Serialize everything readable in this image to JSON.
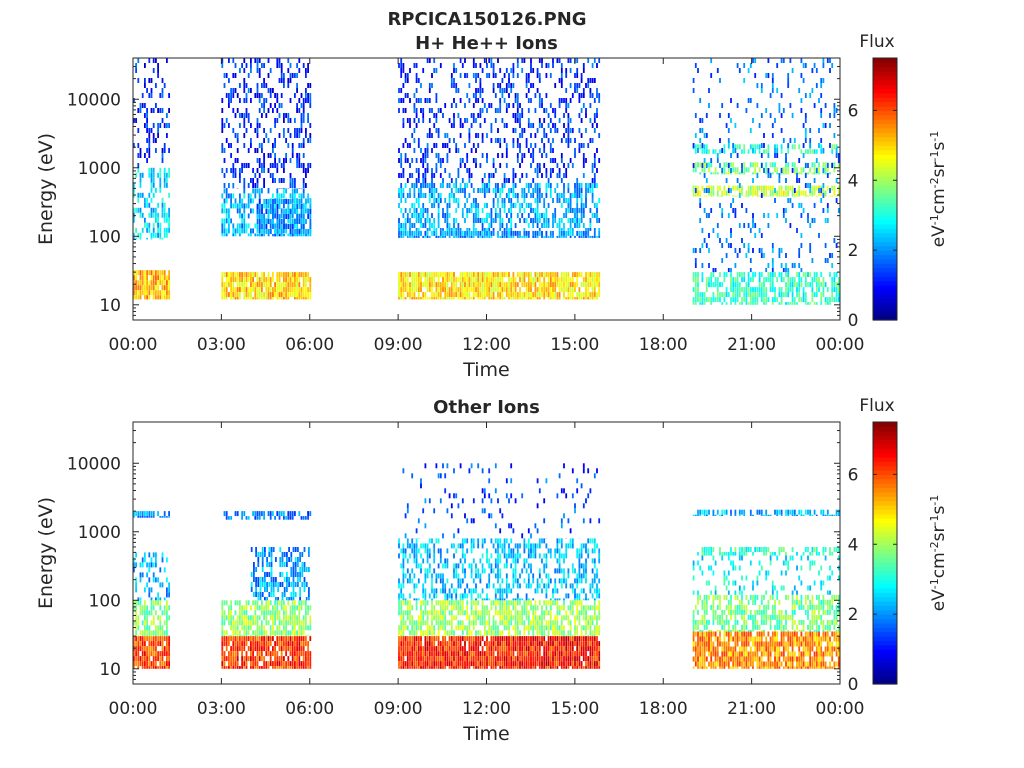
{
  "figure": {
    "title": "RPCICA150126.PNG"
  },
  "chart_data": [
    {
      "type": "heatmap",
      "title": "H+ He++ Ions",
      "xlabel": "Time",
      "ylabel": "Energy (eV)",
      "x_ticks": [
        "00:00",
        "03:00",
        "06:00",
        "09:00",
        "12:00",
        "15:00",
        "18:00",
        "21:00",
        "00:00"
      ],
      "x_range_hours": [
        0,
        24
      ],
      "y_scale": "log",
      "y_ticks": [
        {
          "value": 10,
          "label": "10"
        },
        {
          "value": 100,
          "label": "100"
        },
        {
          "value": 1000,
          "label": "1000"
        },
        {
          "value": 10000,
          "label": "10000"
        }
      ],
      "y_range": [
        6,
        40000
      ],
      "colorbar": {
        "title": "Flux",
        "label": "eV-1cm-2sr-1s-1",
        "range": [
          0,
          7.5
        ],
        "ticks": [
          "0",
          "2",
          "4",
          "6"
        ],
        "colormap": "jet"
      },
      "coverage_hours": [
        [
          0.0,
          1.2
        ],
        [
          3.0,
          6.0
        ],
        [
          9.0,
          15.8
        ],
        [
          19.0,
          24.0
        ]
      ],
      "bands": [
        {
          "hours": [
            0.0,
            1.2
          ],
          "energy": [
            12,
            32
          ],
          "level": 5.2,
          "density": 0.9
        },
        {
          "hours": [
            0.0,
            1.2
          ],
          "energy": [
            90,
            1000
          ],
          "level": 2.6,
          "density": 0.45
        },
        {
          "hours": [
            0.0,
            1.2
          ],
          "energy": [
            1000,
            40000
          ],
          "level": 1.2,
          "density": 0.25
        },
        {
          "hours": [
            3.0,
            6.0
          ],
          "energy": [
            12,
            30
          ],
          "level": 5.0,
          "density": 0.9
        },
        {
          "hours": [
            3.0,
            6.0
          ],
          "energy": [
            100,
            500
          ],
          "level": 2.3,
          "density": 0.55
        },
        {
          "hours": [
            4.2,
            6.0
          ],
          "energy": [
            100,
            350
          ],
          "level": 1.9,
          "density": 0.75
        },
        {
          "hours": [
            3.0,
            6.0
          ],
          "energy": [
            500,
            40000
          ],
          "level": 1.2,
          "density": 0.3
        },
        {
          "hours": [
            9.0,
            15.8
          ],
          "energy": [
            12,
            30
          ],
          "level": 4.9,
          "density": 0.9
        },
        {
          "hours": [
            9.0,
            15.8
          ],
          "energy": [
            95,
            120
          ],
          "level": 2.1,
          "density": 0.85
        },
        {
          "hours": [
            9.0,
            15.8
          ],
          "energy": [
            120,
            600
          ],
          "level": 2.2,
          "density": 0.5
        },
        {
          "hours": [
            9.0,
            15.8
          ],
          "energy": [
            600,
            40000
          ],
          "level": 1.3,
          "density": 0.28
        },
        {
          "hours": [
            19.0,
            24.0
          ],
          "energy": [
            10,
            30
          ],
          "level": 3.2,
          "density": 0.6
        },
        {
          "hours": [
            19.0,
            24.0
          ],
          "energy": [
            380,
            550
          ],
          "level": 4.3,
          "density": 0.7
        },
        {
          "hours": [
            19.0,
            24.0
          ],
          "energy": [
            800,
            1200
          ],
          "level": 3.7,
          "density": 0.55
        },
        {
          "hours": [
            19.0,
            24.0
          ],
          "energy": [
            1600,
            2200
          ],
          "level": 3.2,
          "density": 0.5
        },
        {
          "hours": [
            19.0,
            24.0
          ],
          "energy": [
            30,
            40000
          ],
          "level": 1.8,
          "density": 0.12
        }
      ]
    },
    {
      "type": "heatmap",
      "title": "Other Ions",
      "xlabel": "Time",
      "ylabel": "Energy (eV)",
      "x_ticks": [
        "00:00",
        "03:00",
        "06:00",
        "09:00",
        "12:00",
        "15:00",
        "18:00",
        "21:00",
        "00:00"
      ],
      "x_range_hours": [
        0,
        24
      ],
      "y_scale": "log",
      "y_ticks": [
        {
          "value": 10,
          "label": "10"
        },
        {
          "value": 100,
          "label": "100"
        },
        {
          "value": 1000,
          "label": "1000"
        },
        {
          "value": 10000,
          "label": "10000"
        }
      ],
      "y_range": [
        6,
        40000
      ],
      "colorbar": {
        "title": "Flux",
        "label": "eV-1cm-2sr-1s-1",
        "range": [
          0,
          7.5
        ],
        "ticks": [
          "0",
          "2",
          "4",
          "6"
        ],
        "colormap": "jet"
      },
      "coverage_hours": [
        [
          0.0,
          1.2
        ],
        [
          3.0,
          6.0
        ],
        [
          9.0,
          15.8
        ],
        [
          19.0,
          24.0
        ]
      ],
      "bands": [
        {
          "hours": [
            0.0,
            1.2
          ],
          "energy": [
            10,
            30
          ],
          "level": 6.1,
          "density": 0.9
        },
        {
          "hours": [
            0.0,
            1.2
          ],
          "energy": [
            30,
            100
          ],
          "level": 3.8,
          "density": 0.7
        },
        {
          "hours": [
            0.0,
            1.2
          ],
          "energy": [
            100,
            500
          ],
          "level": 2.3,
          "density": 0.35
        },
        {
          "hours": [
            0.0,
            1.2
          ],
          "energy": [
            1600,
            2000
          ],
          "level": 2.0,
          "density": 0.8
        },
        {
          "hours": [
            3.0,
            6.0
          ],
          "energy": [
            10,
            30
          ],
          "level": 6.2,
          "density": 0.9
        },
        {
          "hours": [
            3.0,
            6.0
          ],
          "energy": [
            30,
            100
          ],
          "level": 3.9,
          "density": 0.75
        },
        {
          "hours": [
            4.0,
            6.0
          ],
          "energy": [
            100,
            600
          ],
          "level": 2.1,
          "density": 0.55
        },
        {
          "hours": [
            3.0,
            6.0
          ],
          "energy": [
            1500,
            2000
          ],
          "level": 1.8,
          "density": 0.6
        },
        {
          "hours": [
            9.0,
            15.8
          ],
          "energy": [
            10,
            30
          ],
          "level": 6.4,
          "density": 0.95
        },
        {
          "hours": [
            9.0,
            15.8
          ],
          "energy": [
            30,
            100
          ],
          "level": 4.0,
          "density": 0.7
        },
        {
          "hours": [
            9.0,
            15.8
          ],
          "energy": [
            100,
            800
          ],
          "level": 2.4,
          "density": 0.45
        },
        {
          "hours": [
            9.0,
            15.8
          ],
          "energy": [
            800,
            10000
          ],
          "level": 1.5,
          "density": 0.08
        },
        {
          "hours": [
            19.0,
            24.0
          ],
          "energy": [
            10,
            35
          ],
          "level": 5.5,
          "density": 0.85
        },
        {
          "hours": [
            19.0,
            24.0
          ],
          "energy": [
            35,
            120
          ],
          "level": 3.7,
          "density": 0.6
        },
        {
          "hours": [
            19.0,
            24.0
          ],
          "energy": [
            450,
            600
          ],
          "level": 3.2,
          "density": 0.55
        },
        {
          "hours": [
            19.0,
            24.0
          ],
          "energy": [
            1700,
            2100
          ],
          "level": 2.3,
          "density": 0.6
        },
        {
          "hours": [
            19.0,
            24.0
          ],
          "energy": [
            120,
            450
          ],
          "level": 2.8,
          "density": 0.2
        }
      ]
    }
  ]
}
